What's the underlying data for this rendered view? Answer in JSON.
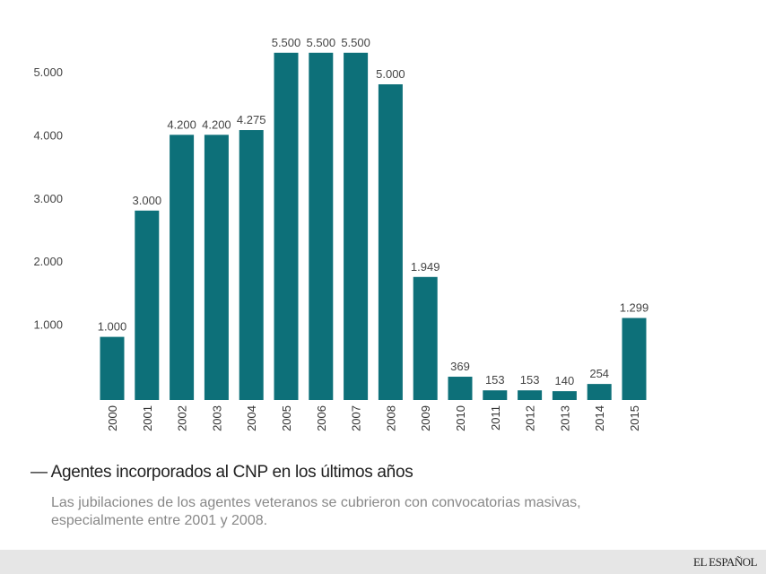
{
  "chart_data": {
    "type": "bar",
    "title": "Agentes incorporados al CNP en los últimos años",
    "subtitle": "Las jubilaciones de los agentes veteranos se cubrieron con convocatorias masivas, especialmente entre 2001 y 2008.",
    "categories": [
      "2000",
      "2001",
      "2002",
      "2003",
      "2004",
      "2005",
      "2006",
      "2007",
      "2008",
      "2009",
      "2010",
      "2011",
      "2012",
      "2013",
      "2014",
      "2015"
    ],
    "values": [
      1000,
      3000,
      4200,
      4200,
      4275,
      5500,
      5500,
      5500,
      5000,
      1949,
      369,
      153,
      153,
      140,
      254,
      1299
    ],
    "data_labels": [
      "1.000",
      "3.000",
      "4.200",
      "4.200",
      "4.275",
      "5.500",
      "5.500",
      "5.500",
      "5.000",
      "1.949",
      "369",
      "153",
      "153",
      "140",
      "254",
      "1.299"
    ],
    "yticks": [
      1000,
      2000,
      3000,
      4000,
      5000
    ],
    "ytick_labels": [
      "1.000",
      "2.000",
      "3.000",
      "4.000",
      "5.000"
    ],
    "xlabel": "",
    "ylabel": "",
    "ylim": [
      0,
      5500
    ],
    "grid": false,
    "bar_color": "#0d7079"
  },
  "footer": {
    "logo": "EL ESPAÑOL"
  }
}
